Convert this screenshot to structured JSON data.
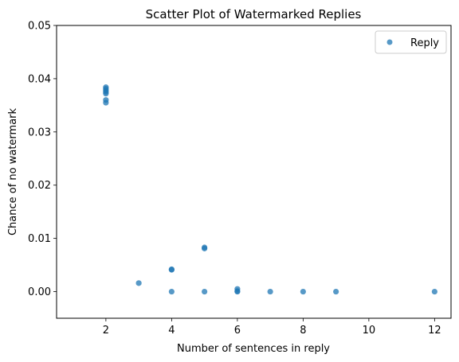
{
  "chart_data": {
    "type": "scatter",
    "title": "Scatter Plot of Watermarked Replies",
    "xlabel": "Number of sentences in reply",
    "ylabel": "Chance of no watermark",
    "xlim": [
      0.5,
      12.5
    ],
    "ylim": [
      -0.005,
      0.05
    ],
    "xticks": [
      "2",
      "4",
      "6",
      "8",
      "10",
      "12"
    ],
    "yticks": [
      "0.00",
      "0.01",
      "0.02",
      "0.03",
      "0.04",
      "0.05"
    ],
    "grid": false,
    "legend_position": "top-right",
    "series": [
      {
        "name": "Reply",
        "color": "#1f77b4",
        "points": [
          {
            "x": 2,
            "y": 0.0384
          },
          {
            "x": 2,
            "y": 0.0381
          },
          {
            "x": 2,
            "y": 0.0378
          },
          {
            "x": 2,
            "y": 0.0375
          },
          {
            "x": 2,
            "y": 0.0372
          },
          {
            "x": 2,
            "y": 0.036
          },
          {
            "x": 2,
            "y": 0.0355
          },
          {
            "x": 3,
            "y": 0.0016
          },
          {
            "x": 4,
            "y": 0.0042
          },
          {
            "x": 4,
            "y": 0.0041
          },
          {
            "x": 4,
            "y": 0.0
          },
          {
            "x": 5,
            "y": 0.0083
          },
          {
            "x": 5,
            "y": 0.0081
          },
          {
            "x": 5,
            "y": 0.0
          },
          {
            "x": 6,
            "y": 0.0005
          },
          {
            "x": 6,
            "y": 0.0001
          },
          {
            "x": 6,
            "y": 0.0
          },
          {
            "x": 7,
            "y": 0.0
          },
          {
            "x": 8,
            "y": 0.0
          },
          {
            "x": 9,
            "y": 0.0
          },
          {
            "x": 12,
            "y": 0.0
          }
        ]
      }
    ]
  }
}
